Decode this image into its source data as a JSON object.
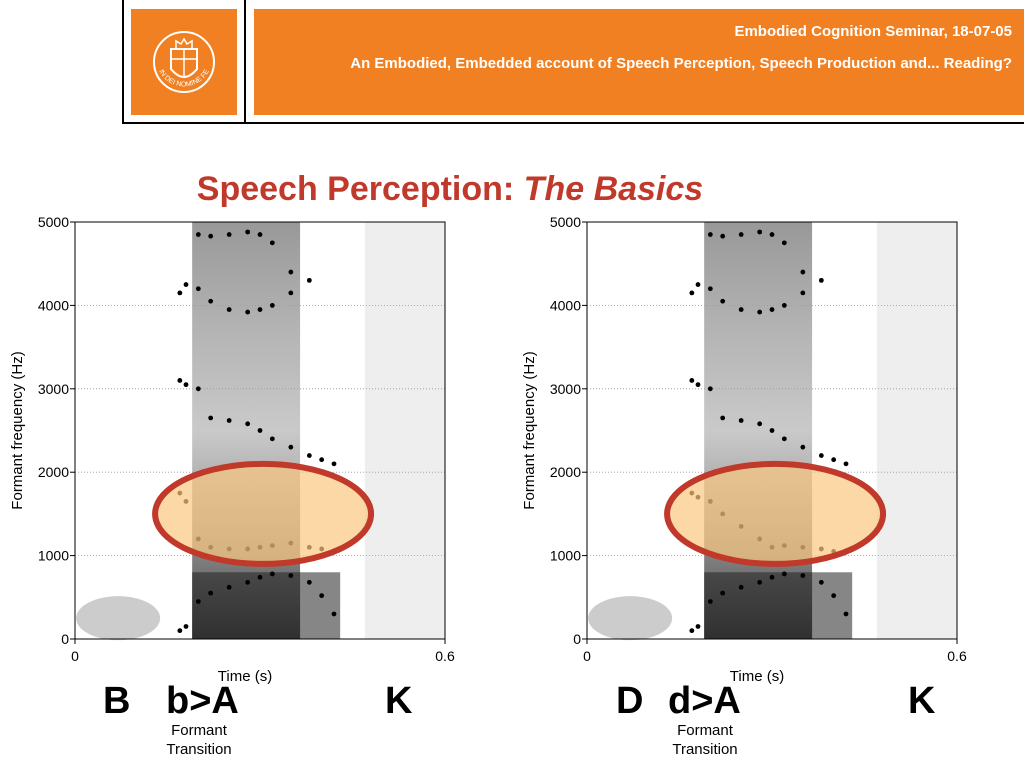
{
  "header": {
    "line1": "Embodied Cognition Seminar, 18-07-05",
    "line2": "An Embodied, Embedded account of Speech Perception, Speech Production and... Reading?",
    "logo_text": "IN DEI NOMINE FELICITER",
    "logo_icon": "university-crest-icon",
    "accent_color": "#f08022"
  },
  "slide": {
    "title_main": "Speech Perception: ",
    "title_italic": "The Basics",
    "title_color": "#c0392b"
  },
  "chart_data": [
    {
      "type": "scatter",
      "xlabel": "Time (s)",
      "ylabel": "Formant frequency (Hz)",
      "xlim": [
        0,
        0.6
      ],
      "ylim": [
        0,
        5000
      ],
      "x_ticks": [
        "0",
        "0.6"
      ],
      "y_ticks": [
        "0",
        "1000",
        "2000",
        "3000",
        "4000",
        "5000"
      ],
      "grid": true,
      "highlight": "ellipse around F2 formant transition",
      "series": [
        {
          "x": [
            0.17,
            0.18,
            0.2,
            0.22,
            0.25,
            0.28,
            0.3,
            0.32,
            0.35,
            0.38,
            0.4,
            0.42
          ],
          "y": [
            100,
            150,
            450,
            550,
            620,
            680,
            740,
            780,
            760,
            680,
            520,
            300
          ]
        },
        {
          "x": [
            0.17,
            0.18,
            0.2,
            0.22,
            0.25,
            0.28,
            0.3,
            0.32,
            0.35,
            0.38,
            0.4,
            0.42
          ],
          "y": [
            1750,
            1650,
            1200,
            1100,
            1080,
            1080,
            1100,
            1120,
            1150,
            1100,
            1080,
            1050
          ]
        },
        {
          "x": [
            0.17,
            0.18,
            0.2,
            0.22,
            0.25,
            0.28,
            0.3,
            0.32,
            0.35,
            0.38,
            0.4,
            0.42
          ],
          "y": [
            3100,
            3050,
            3000,
            2650,
            2620,
            2580,
            2500,
            2400,
            2300,
            2200,
            2150,
            2100
          ]
        },
        {
          "x": [
            0.17,
            0.18,
            0.2,
            0.22,
            0.25,
            0.28,
            0.3,
            0.32,
            0.35,
            0.38
          ],
          "y": [
            4150,
            4250,
            4850,
            4830,
            4850,
            4880,
            4850,
            4750,
            4400,
            4300
          ]
        },
        {
          "x": [
            0.2,
            0.22,
            0.25,
            0.28,
            0.3,
            0.32,
            0.35
          ],
          "y": [
            4200,
            4050,
            3950,
            3920,
            3950,
            4000,
            4150
          ]
        }
      ]
    },
    {
      "type": "scatter",
      "xlabel": "Time (s)",
      "ylabel": "Formant frequency (Hz)",
      "xlim": [
        0,
        0.6
      ],
      "ylim": [
        0,
        5000
      ],
      "x_ticks": [
        "0",
        "0.6"
      ],
      "y_ticks": [
        "0",
        "1000",
        "2000",
        "3000",
        "4000",
        "5000"
      ],
      "grid": true,
      "highlight": "ellipse around F2 formant transition",
      "series": [
        {
          "x": [
            0.17,
            0.18,
            0.2,
            0.22,
            0.25,
            0.28,
            0.3,
            0.32,
            0.35,
            0.38,
            0.4,
            0.42
          ],
          "y": [
            100,
            150,
            450,
            550,
            620,
            680,
            740,
            780,
            760,
            680,
            520,
            300
          ]
        },
        {
          "x": [
            0.17,
            0.18,
            0.2,
            0.22,
            0.25,
            0.28,
            0.3,
            0.32,
            0.35,
            0.38,
            0.4
          ],
          "y": [
            1750,
            1700,
            1650,
            1500,
            1350,
            1200,
            1100,
            1120,
            1100,
            1080,
            1050
          ]
        },
        {
          "x": [
            0.17,
            0.18,
            0.2,
            0.22,
            0.25,
            0.28,
            0.3,
            0.32,
            0.35,
            0.38,
            0.4,
            0.42
          ],
          "y": [
            3100,
            3050,
            3000,
            2650,
            2620,
            2580,
            2500,
            2400,
            2300,
            2200,
            2150,
            2100
          ]
        },
        {
          "x": [
            0.17,
            0.18,
            0.2,
            0.22,
            0.25,
            0.28,
            0.3,
            0.32,
            0.35,
            0.38
          ],
          "y": [
            4150,
            4250,
            4850,
            4830,
            4850,
            4880,
            4850,
            4750,
            4400,
            4300
          ]
        },
        {
          "x": [
            0.2,
            0.22,
            0.25,
            0.28,
            0.3,
            0.32,
            0.35
          ],
          "y": [
            4200,
            4050,
            3950,
            3920,
            3950,
            4000,
            4150
          ]
        }
      ]
    }
  ],
  "labels": {
    "left": {
      "consonant": "B",
      "transition": "b>A",
      "end": "K",
      "caption_1": "Formant",
      "caption_2": "Transition"
    },
    "right": {
      "consonant": "D",
      "transition": "d>A",
      "end": "K",
      "caption_1": "Formant",
      "caption_2": "Transition"
    }
  }
}
